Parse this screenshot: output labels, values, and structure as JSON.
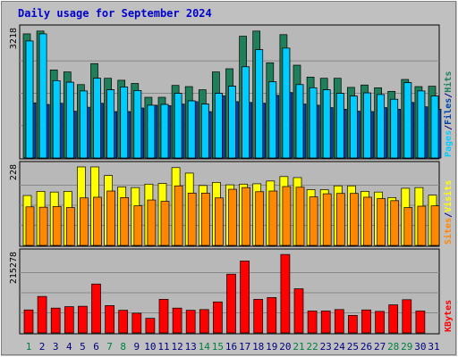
{
  "title": "Daily usage for September 2024",
  "colors": {
    "background": "#c0c0c0",
    "panel": "#b8b8b8",
    "title": "#0000cc",
    "hits": "#1e7f5a",
    "files": "#00ccff",
    "pages": "#0044aa",
    "visits": "#ffff00",
    "sites": "#ff8800",
    "kbytes": "#ff0000",
    "weekend_label": "#008040",
    "weekday_label": "#000080"
  },
  "chart_data": [
    {
      "type": "bar",
      "name": "hits-files-pages",
      "categories": [
        "1",
        "2",
        "3",
        "4",
        "5",
        "6",
        "7",
        "8",
        "9",
        "10",
        "11",
        "12",
        "13",
        "14",
        "15",
        "16",
        "17",
        "18",
        "19",
        "20",
        "21",
        "22",
        "23",
        "24",
        "25",
        "26",
        "27",
        "28",
        "29",
        "30",
        "31"
      ],
      "ymax": 3218,
      "ymax_label": "3218",
      "legend": [
        {
          "label": "Pages",
          "color": "#00ccff"
        },
        {
          "label": "/",
          "color": "#000080"
        },
        {
          "label": "Files",
          "color": "#0044aa"
        },
        {
          "label": "/",
          "color": "#000080"
        },
        {
          "label": "Hits",
          "color": "#1e7f5a"
        }
      ],
      "series": [
        {
          "key": "hits",
          "values": [
            3130,
            3200,
            2220,
            2170,
            1850,
            2380,
            2010,
            1960,
            1880,
            1530,
            1530,
            1830,
            1800,
            1720,
            2170,
            2250,
            3070,
            3200,
            2400,
            3110,
            2340,
            2040,
            2010,
            2010,
            1780,
            1840,
            1770,
            1680,
            1980,
            1800,
            1810
          ]
        },
        {
          "key": "files",
          "values": [
            2950,
            3130,
            1950,
            1910,
            1690,
            2010,
            1720,
            1790,
            1700,
            1330,
            1350,
            1630,
            1440,
            1360,
            1630,
            1810,
            2300,
            2730,
            1920,
            2770,
            1850,
            1770,
            1720,
            1630,
            1560,
            1640,
            1600,
            1480,
            1900,
            1690,
            1560
          ]
        },
        {
          "key": "pages",
          "values": [
            1390,
            1350,
            1380,
            1180,
            1280,
            1380,
            1170,
            1170,
            1260,
            1330,
            1320,
            1360,
            1420,
            1170,
            1570,
            1420,
            1400,
            1380,
            1580,
            1650,
            1360,
            1330,
            1270,
            1230,
            1180,
            1170,
            1270,
            1230,
            1400,
            1290,
            1230
          ]
        }
      ]
    },
    {
      "type": "bar",
      "name": "visits-sites",
      "categories": [
        "1",
        "2",
        "3",
        "4",
        "5",
        "6",
        "7",
        "8",
        "9",
        "10",
        "11",
        "12",
        "13",
        "14",
        "15",
        "16",
        "17",
        "18",
        "19",
        "20",
        "21",
        "22",
        "23",
        "24",
        "25",
        "26",
        "27",
        "28",
        "29",
        "30",
        "31"
      ],
      "ymax": 228,
      "ymax_label": "228",
      "legend": [
        {
          "label": "Sites",
          "color": "#ff8800"
        },
        {
          "label": "/",
          "color": "#000080"
        },
        {
          "label": "Visits",
          "color": "#ffff00"
        }
      ],
      "series": [
        {
          "key": "visits",
          "values": [
            145,
            157,
            155,
            157,
            228,
            228,
            203,
            170,
            168,
            178,
            180,
            226,
            210,
            174,
            183,
            176,
            178,
            179,
            187,
            200,
            197,
            162,
            162,
            173,
            173,
            157,
            155,
            139,
            166,
            168,
            146
          ]
        },
        {
          "key": "sites",
          "values": [
            112,
            111,
            113,
            110,
            138,
            140,
            158,
            139,
            115,
            132,
            128,
            173,
            152,
            152,
            138,
            163,
            168,
            156,
            158,
            171,
            169,
            141,
            150,
            151,
            151,
            140,
            136,
            130,
            110,
            114,
            115
          ]
        }
      ]
    },
    {
      "type": "bar",
      "name": "kbytes",
      "categories": [
        "1",
        "2",
        "3",
        "4",
        "5",
        "6",
        "7",
        "8",
        "9",
        "10",
        "11",
        "12",
        "13",
        "14",
        "15",
        "16",
        "17",
        "18",
        "19",
        "20",
        "21",
        "22",
        "23",
        "24",
        "25",
        "26",
        "27",
        "28",
        "29",
        "30",
        "31"
      ],
      "ymax": 215278,
      "ymax_label": "215278",
      "legend": [
        {
          "label": "KBytes",
          "color": "#ff0000"
        }
      ],
      "series": [
        {
          "key": "kbytes",
          "values": [
            63000,
            100000,
            68000,
            72000,
            73000,
            134000,
            75000,
            62000,
            54000,
            40000,
            92000,
            68000,
            62000,
            64000,
            85000,
            161000,
            197000,
            92000,
            97000,
            215000,
            121000,
            60000,
            60000,
            64000,
            48000,
            63000,
            59000,
            77000,
            91000,
            60000,
            0
          ]
        }
      ]
    }
  ],
  "x_labels": [
    {
      "day": "1",
      "weekend": true
    },
    {
      "day": "2",
      "weekend": false
    },
    {
      "day": "3",
      "weekend": false
    },
    {
      "day": "4",
      "weekend": false
    },
    {
      "day": "5",
      "weekend": false
    },
    {
      "day": "6",
      "weekend": false
    },
    {
      "day": "7",
      "weekend": true
    },
    {
      "day": "8",
      "weekend": true
    },
    {
      "day": "9",
      "weekend": false
    },
    {
      "day": "10",
      "weekend": false
    },
    {
      "day": "11",
      "weekend": false
    },
    {
      "day": "12",
      "weekend": false
    },
    {
      "day": "13",
      "weekend": false
    },
    {
      "day": "14",
      "weekend": true
    },
    {
      "day": "15",
      "weekend": true
    },
    {
      "day": "16",
      "weekend": false
    },
    {
      "day": "17",
      "weekend": false
    },
    {
      "day": "18",
      "weekend": false
    },
    {
      "day": "19",
      "weekend": false
    },
    {
      "day": "20",
      "weekend": false
    },
    {
      "day": "21",
      "weekend": true
    },
    {
      "day": "22",
      "weekend": true
    },
    {
      "day": "23",
      "weekend": false
    },
    {
      "day": "24",
      "weekend": false
    },
    {
      "day": "25",
      "weekend": false
    },
    {
      "day": "26",
      "weekend": false
    },
    {
      "day": "27",
      "weekend": false
    },
    {
      "day": "28",
      "weekend": true
    },
    {
      "day": "29",
      "weekend": true
    },
    {
      "day": "30",
      "weekend": false
    },
    {
      "day": "31",
      "weekend": false
    }
  ]
}
